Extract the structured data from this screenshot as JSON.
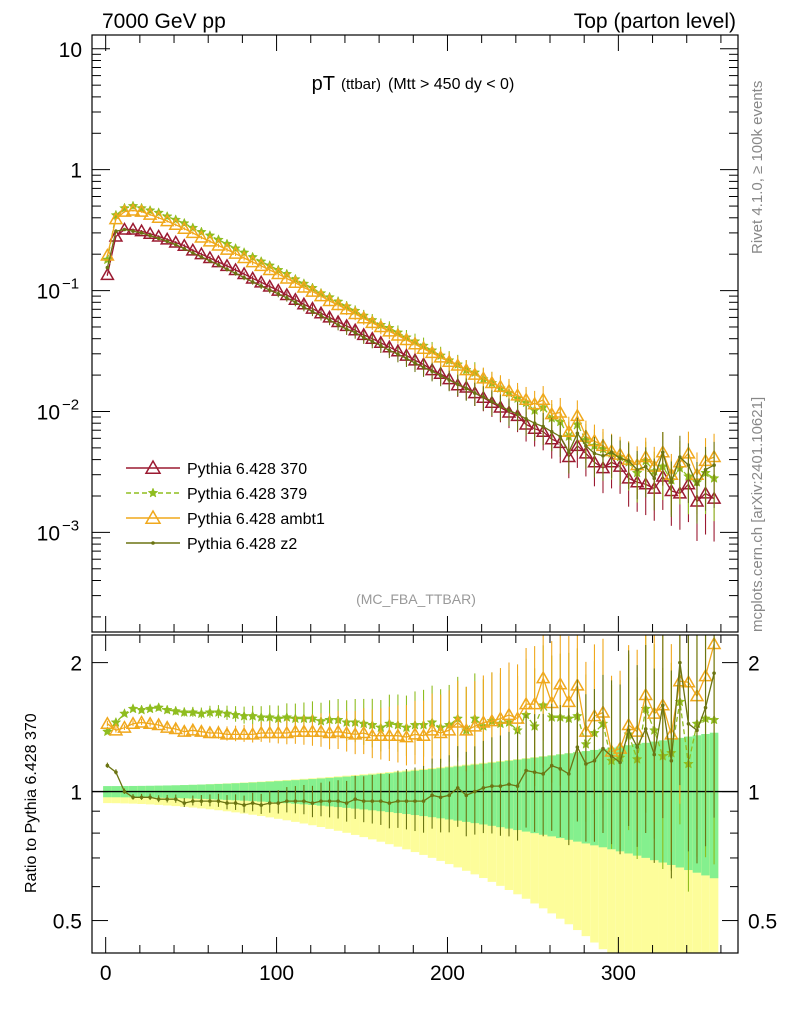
{
  "header": {
    "left": "7000 GeV pp",
    "right": "Top (parton level)"
  },
  "side_labels": {
    "rivet": "Rivet 4.1.0, ≥ 100k events",
    "mcplots": "mcplots.cern.ch [arXiv:2401.10621]"
  },
  "colors": {
    "s370": "#9b1a31",
    "s379": "#8fbd1f",
    "ambt1": "#f0a81c",
    "z2": "#6b7412",
    "band_inner": "#84f08e",
    "band_outer": "#fdfd9a"
  },
  "chart_data": [
    {
      "type": "line",
      "panel": "main",
      "title": "pT",
      "title_sub": "(ttbar)",
      "title_cut": "(Mtt > 450 dy < 0)",
      "watermark": "(MC_FBA_TTBAR)",
      "xlim": [
        -8,
        370
      ],
      "ylim": [
        0.00015,
        13
      ],
      "yscale": "log",
      "ytick_labels": [
        {
          "value": 10,
          "base": "10",
          "exp": ""
        },
        {
          "value": 1,
          "base": "1",
          "exp": ""
        },
        {
          "value": 0.1,
          "base": "10",
          "exp": "−1"
        },
        {
          "value": 0.01,
          "base": "10",
          "exp": "−2"
        },
        {
          "value": 0.001,
          "base": "10",
          "exp": "−3"
        }
      ],
      "x": [
        1,
        6,
        11,
        16,
        21,
        26,
        31,
        36,
        41,
        46,
        51,
        56,
        61,
        66,
        71,
        76,
        81,
        86,
        91,
        96,
        101,
        106,
        111,
        116,
        121,
        126,
        131,
        136,
        141,
        146,
        151,
        156,
        161,
        166,
        171,
        176,
        181,
        186,
        191,
        196,
        201,
        206,
        211,
        216,
        221,
        226,
        231,
        236,
        241,
        246,
        251,
        256,
        261,
        266,
        271,
        276,
        281,
        286,
        291,
        296,
        301,
        306,
        311,
        316,
        321,
        326,
        331,
        336,
        341,
        346,
        351,
        356
      ],
      "series": [
        {
          "name": "Pythia 6.428 370",
          "color_key": "s370",
          "marker": "triangle-open",
          "values": [
            0.135,
            0.28,
            0.32,
            0.32,
            0.31,
            0.295,
            0.28,
            0.265,
            0.25,
            0.235,
            0.215,
            0.2,
            0.186,
            0.172,
            0.16,
            0.148,
            0.137,
            0.126,
            0.117,
            0.108,
            0.1,
            0.092,
            0.084,
            0.077,
            0.071,
            0.065,
            0.06,
            0.055,
            0.051,
            0.047,
            0.043,
            0.04,
            0.037,
            0.034,
            0.0315,
            0.029,
            0.0265,
            0.0245,
            0.022,
            0.0205,
            0.0185,
            0.0165,
            0.0158,
            0.0142,
            0.013,
            0.0118,
            0.0108,
            0.0098,
            0.0092,
            0.0078,
            0.0072,
            0.0068,
            0.0059,
            0.0055,
            0.0042,
            0.0052,
            0.0045,
            0.0038,
            0.0034,
            0.0038,
            0.0035,
            0.0028,
            0.0026,
            0.0025,
            0.0023,
            0.0029,
            0.0022,
            0.0021,
            0.0025,
            0.0018,
            0.0021,
            0.0019
          ]
        },
        {
          "name": "Pythia 6.428 379",
          "color_key": "s379",
          "marker": "star",
          "values": [
            0.18,
            0.42,
            0.48,
            0.5,
            0.48,
            0.46,
            0.44,
            0.41,
            0.385,
            0.36,
            0.33,
            0.305,
            0.285,
            0.263,
            0.243,
            0.223,
            0.206,
            0.189,
            0.174,
            0.161,
            0.148,
            0.137,
            0.124,
            0.114,
            0.105,
            0.095,
            0.088,
            0.081,
            0.074,
            0.068,
            0.062,
            0.057,
            0.052,
            0.049,
            0.045,
            0.041,
            0.038,
            0.035,
            0.032,
            0.029,
            0.0265,
            0.0245,
            0.022,
            0.021,
            0.0185,
            0.0172,
            0.0155,
            0.0142,
            0.0128,
            0.0118,
            0.0102,
            0.0108,
            0.0088,
            0.0082,
            0.0062,
            0.0078,
            0.0058,
            0.0052,
            0.0049,
            0.0045,
            0.0042,
            0.0038,
            0.0031,
            0.0039,
            0.0032,
            0.0035,
            0.0027,
            0.0034,
            0.0029,
            0.0026,
            0.0031,
            0.0028
          ]
        },
        {
          "name": "Pythia 6.428 ambt1",
          "color_key": "ambt1",
          "marker": "triangle-open",
          "values": [
            0.195,
            0.39,
            0.45,
            0.46,
            0.45,
            0.425,
            0.4,
            0.375,
            0.35,
            0.325,
            0.3,
            0.275,
            0.255,
            0.236,
            0.218,
            0.202,
            0.186,
            0.172,
            0.16,
            0.148,
            0.137,
            0.126,
            0.116,
            0.106,
            0.098,
            0.09,
            0.082,
            0.076,
            0.07,
            0.064,
            0.059,
            0.054,
            0.05,
            0.046,
            0.0425,
            0.039,
            0.036,
            0.033,
            0.0305,
            0.028,
            0.0258,
            0.024,
            0.022,
            0.0202,
            0.0188,
            0.0172,
            0.016,
            0.0148,
            0.0136,
            0.0125,
            0.0115,
            0.0125,
            0.0095,
            0.0098,
            0.0068,
            0.0092,
            0.0062,
            0.0057,
            0.0052,
            0.0047,
            0.0044,
            0.004,
            0.0036,
            0.0042,
            0.0035,
            0.0046,
            0.003,
            0.0038,
            0.0045,
            0.003,
            0.0039,
            0.0042
          ]
        },
        {
          "name": "Pythia 6.428 z2",
          "color_key": "z2",
          "marker": "dot",
          "values": [
            0.155,
            0.31,
            0.32,
            0.31,
            0.3,
            0.285,
            0.27,
            0.255,
            0.24,
            0.222,
            0.205,
            0.19,
            0.176,
            0.163,
            0.15,
            0.139,
            0.128,
            0.118,
            0.109,
            0.101,
            0.094,
            0.087,
            0.08,
            0.073,
            0.067,
            0.062,
            0.057,
            0.052,
            0.048,
            0.045,
            0.041,
            0.038,
            0.035,
            0.032,
            0.0298,
            0.0275,
            0.0252,
            0.0232,
            0.0215,
            0.0198,
            0.0182,
            0.0168,
            0.0155,
            0.0142,
            0.0132,
            0.0121,
            0.0111,
            0.0102,
            0.0095,
            0.0087,
            0.008,
            0.0075,
            0.0068,
            0.0062,
            0.0046,
            0.0066,
            0.0052,
            0.0045,
            0.0043,
            0.0046,
            0.0041,
            0.0039,
            0.0033,
            0.0035,
            0.0028,
            0.0046,
            0.0026,
            0.0042,
            0.0036,
            0.0025,
            0.0033,
            0.0036
          ]
        }
      ]
    },
    {
      "type": "line",
      "panel": "ratio",
      "ylabel": "Ratio to Pythia 6.428 370",
      "xlim": [
        -8,
        370
      ],
      "ylim": [
        0.42,
        2.32
      ],
      "yscale": "log",
      "reference": 1,
      "ytick_labels": [
        {
          "value": 2,
          "label": "2"
        },
        {
          "value": 1,
          "label": "1"
        },
        {
          "value": 0.5,
          "label": "0.5"
        }
      ],
      "xtick_labels": [
        {
          "value": 0,
          "label": "0"
        },
        {
          "value": 100,
          "label": "100"
        },
        {
          "value": 200,
          "label": "200"
        },
        {
          "value": 300,
          "label": "300"
        }
      ],
      "series": [
        {
          "name": "Pythia 6.428 379",
          "color_key": "s379",
          "values": [
            1.38,
            1.45,
            1.52,
            1.56,
            1.55,
            1.56,
            1.57,
            1.55,
            1.54,
            1.53,
            1.53,
            1.52,
            1.53,
            1.53,
            1.52,
            1.51,
            1.5,
            1.5,
            1.49,
            1.49,
            1.48,
            1.49,
            1.48,
            1.48,
            1.48,
            1.46,
            1.47,
            1.47,
            1.45,
            1.45,
            1.44,
            1.43,
            1.41,
            1.44,
            1.43,
            1.41,
            1.43,
            1.43,
            1.45,
            1.41,
            1.43,
            1.48,
            1.39,
            1.48,
            1.42,
            1.46,
            1.44,
            1.45,
            1.39,
            1.51,
            1.42,
            1.59,
            1.49,
            1.49,
            1.48,
            1.5,
            1.29,
            1.37,
            1.44,
            1.18,
            1.2,
            1.36,
            1.19,
            1.56,
            1.39,
            1.21,
            1.23,
            1.62,
            1.16,
            1.44,
            1.48,
            1.47
          ]
        },
        {
          "name": "Pythia 6.428 ambt1",
          "color_key": "ambt1",
          "values": [
            1.44,
            1.39,
            1.41,
            1.44,
            1.45,
            1.44,
            1.43,
            1.41,
            1.4,
            1.38,
            1.39,
            1.38,
            1.37,
            1.37,
            1.36,
            1.36,
            1.36,
            1.36,
            1.37,
            1.37,
            1.37,
            1.37,
            1.38,
            1.38,
            1.38,
            1.38,
            1.37,
            1.38,
            1.37,
            1.36,
            1.37,
            1.35,
            1.35,
            1.35,
            1.35,
            1.34,
            1.36,
            1.35,
            1.39,
            1.37,
            1.39,
            1.45,
            1.39,
            1.42,
            1.45,
            1.46,
            1.48,
            1.51,
            1.48,
            1.6,
            1.6,
            1.84,
            1.61,
            1.78,
            1.62,
            1.77,
            1.38,
            1.5,
            1.53,
            1.24,
            1.26,
            1.43,
            1.38,
            1.68,
            1.52,
            1.59,
            1.36,
            1.81,
            1.8,
            1.67,
            1.86,
            2.21
          ]
        },
        {
          "name": "Pythia 6.428 z2",
          "color_key": "z2",
          "values": [
            1.15,
            1.11,
            1.0,
            0.97,
            0.97,
            0.97,
            0.96,
            0.96,
            0.96,
            0.94,
            0.95,
            0.95,
            0.95,
            0.95,
            0.94,
            0.94,
            0.93,
            0.94,
            0.93,
            0.94,
            0.94,
            0.95,
            0.95,
            0.95,
            0.94,
            0.95,
            0.95,
            0.95,
            0.94,
            0.96,
            0.95,
            0.95,
            0.95,
            0.94,
            0.95,
            0.95,
            0.95,
            0.95,
            0.98,
            0.97,
            0.98,
            1.02,
            0.98,
            1.0,
            1.02,
            1.03,
            1.03,
            1.04,
            1.03,
            1.12,
            1.11,
            1.1,
            1.15,
            1.13,
            1.1,
            1.27,
            1.16,
            1.18,
            1.26,
            1.21,
            1.17,
            1.39,
            1.27,
            1.4,
            1.22,
            1.59,
            1.18,
            2.0,
            1.44,
            1.39,
            1.57,
            1.89
          ]
        }
      ]
    }
  ],
  "legend": [
    {
      "label": "Pythia 6.428 370",
      "color_key": "s370",
      "marker": "triangle-open",
      "line": "solid"
    },
    {
      "label": "Pythia 6.428 379",
      "color_key": "s379",
      "marker": "star",
      "line": "dashed"
    },
    {
      "label": "Pythia 6.428 ambt1",
      "color_key": "ambt1",
      "marker": "triangle-open",
      "line": "solid"
    },
    {
      "label": "Pythia 6.428 z2",
      "color_key": "z2",
      "marker": "dot",
      "line": "solid"
    }
  ]
}
